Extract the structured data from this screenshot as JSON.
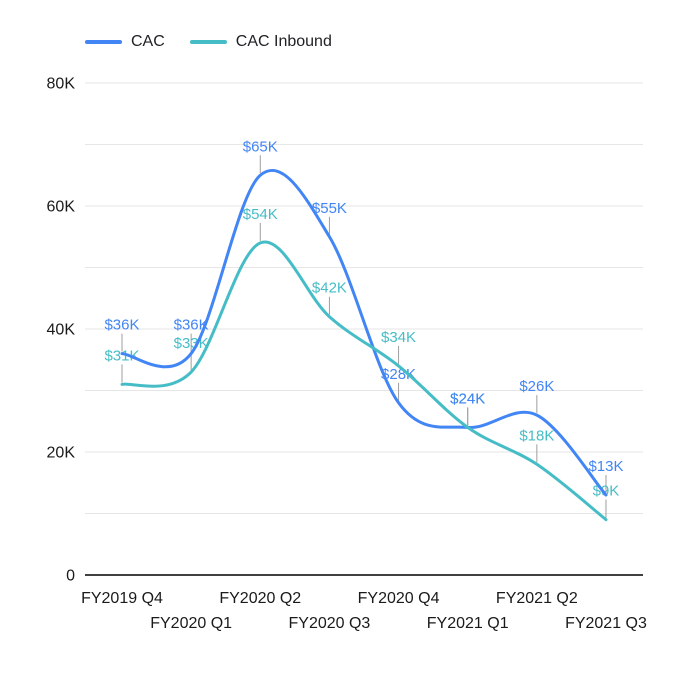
{
  "chart_data": {
    "type": "line",
    "smooth": true,
    "title": "",
    "legend_position": "top",
    "background": "#ffffff",
    "categories": [
      "FY2019 Q4",
      "FY2020 Q1",
      "FY2020 Q2",
      "FY2020 Q3",
      "FY2020 Q4",
      "FY2021 Q1",
      "FY2021 Q2",
      "FY2021 Q3"
    ],
    "series": [
      {
        "name": "CAC",
        "color": "#4285F4",
        "values": [
          36000,
          36000,
          65000,
          55000,
          28000,
          24000,
          26000,
          13000
        ],
        "point_labels": [
          "$36K",
          "$36K",
          "$65K",
          "$55K",
          "$28K",
          "$24K",
          "$26K",
          "$13K"
        ]
      },
      {
        "name": "CAC Inbound",
        "color": "#46BDC6",
        "values": [
          31000,
          33000,
          54000,
          42000,
          34000,
          24000,
          18000,
          9000
        ],
        "point_labels": [
          "$31K",
          "$33K",
          "$54K",
          "$42K",
          "$34K",
          "$24K",
          "$18K",
          "$9K"
        ]
      }
    ],
    "y_axis": {
      "min": 0,
      "max": 80000,
      "gridline_step": 10000,
      "label_step": 20000,
      "tick_labels": [
        "0",
        "20K",
        "40K",
        "60K",
        "80K"
      ]
    },
    "x_axis": {
      "staggered_labels": true
    },
    "colors": {
      "gridline": "#e6e6e6",
      "axis_line": "#000000",
      "leader_line": "#9e9e9e"
    }
  }
}
